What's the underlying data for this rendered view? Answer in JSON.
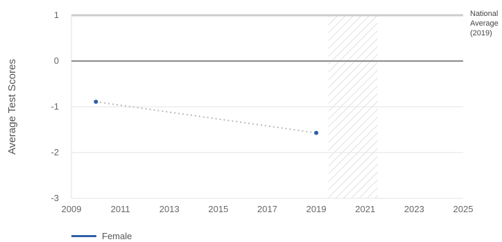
{
  "chart_data": {
    "type": "line",
    "title": "",
    "xlabel": "",
    "ylabel": "Average Test Scores",
    "xlim": [
      2009,
      2025
    ],
    "ylim": [
      -3,
      1
    ],
    "x_ticks": [
      "2009",
      "2011",
      "2013",
      "2015",
      "2017",
      "2019",
      "2021",
      "2023",
      "2025"
    ],
    "y_ticks": [
      "1",
      "0",
      "-1",
      "-2",
      "-3"
    ],
    "grid": true,
    "legend_position": "bottom-left",
    "series": [
      {
        "name": "Female",
        "color": "#2f5ea8",
        "points": [
          {
            "x": 2010,
            "y": -0.89
          },
          {
            "x": 2019,
            "y": -1.57
          }
        ]
      }
    ],
    "reference_lines": [
      {
        "label_lines": [
          "National",
          "Average",
          "(2019)"
        ],
        "y": 1
      }
    ],
    "shaded_band": {
      "from": 2019.5,
      "to": 2021.5,
      "pattern": "diagonal-hatch"
    },
    "zero_line": true
  },
  "legend": {
    "female_label": "Female"
  }
}
